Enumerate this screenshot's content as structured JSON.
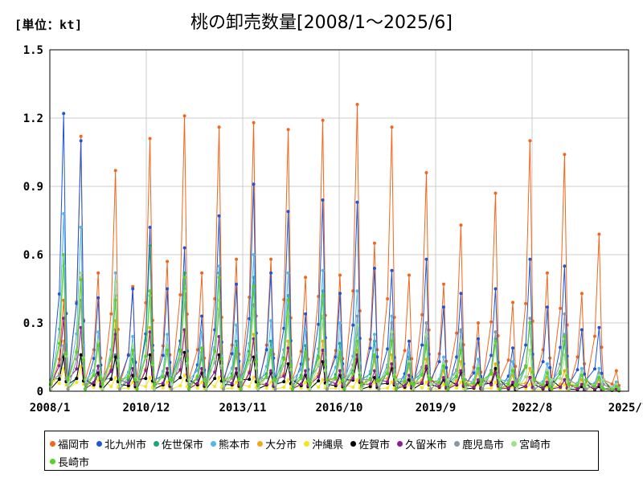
{
  "unit_label": "[単位：kt]",
  "title": "桃の卸売数量[2008/1～2025/6]",
  "chart_data": {
    "type": "line",
    "title": "桃の卸売数量[2008/1～2025/6]",
    "unit": "[単位：kt]",
    "ylim": [
      0,
      1.5
    ],
    "y_ticks": [
      "0",
      "0.3",
      "0.6",
      "0.9",
      "1.2",
      "1.5"
    ],
    "x_ticks": [
      "2008/1",
      "2010/12",
      "2013/11",
      "2016/10",
      "2019/9",
      "2022/8",
      "2025/7"
    ],
    "grid": true,
    "legend_position": "bottom",
    "series": [
      {
        "name": "福岡市",
        "color": "#f4661b",
        "peaks": [
          0.4,
          1.12,
          0.52,
          0.97,
          0.46,
          1.11,
          0.57,
          1.21,
          0.52,
          1.16,
          0.58,
          1.18,
          0.58,
          1.15,
          0.5,
          1.19,
          0.51,
          1.26,
          0.65,
          1.16,
          0.51,
          0.96,
          0.47,
          0.73,
          0.3,
          0.87,
          0.39,
          1.1,
          0.52,
          1.04,
          0.43,
          0.69,
          0.09
        ]
      },
      {
        "name": "北九州市",
        "color": "#1f55d6",
        "peaks": [
          1.22,
          1.1,
          0.41,
          0.27,
          0.45,
          0.72,
          0.45,
          0.63,
          0.33,
          0.77,
          0.47,
          0.91,
          0.52,
          0.79,
          0.34,
          0.84,
          0.43,
          0.83,
          0.54,
          0.53,
          0.22,
          0.58,
          0.37,
          0.43,
          0.23,
          0.45,
          0.19,
          0.58,
          0.37,
          0.55,
          0.27,
          0.28,
          0.04
        ]
      },
      {
        "name": "佐世保市",
        "color": "#19a67a",
        "peaks": [
          0.16,
          0.16,
          0.11,
          0.16,
          0.14,
          0.64,
          0.2,
          0.52,
          0.15,
          0.52,
          0.22,
          0.5,
          0.22,
          0.42,
          0.2,
          0.44,
          0.21,
          0.27,
          0.22,
          0.25,
          0.15,
          0.23,
          0.12,
          0.2,
          0.11,
          0.23,
          0.1,
          0.3,
          0.09,
          0.22,
          0.08,
          0.08,
          0.03
        ]
      },
      {
        "name": "熊本市",
        "color": "#55b8e8",
        "peaks": [
          0.78,
          0.72,
          0.26,
          0.52,
          0.24,
          0.44,
          0.25,
          0.46,
          0.26,
          0.55,
          0.29,
          0.6,
          0.31,
          0.52,
          0.27,
          0.53,
          0.3,
          0.44,
          0.25,
          0.33,
          0.17,
          0.3,
          0.15,
          0.26,
          0.14,
          0.26,
          0.13,
          0.3,
          0.12,
          0.25,
          0.1,
          0.1,
          0.04
        ]
      },
      {
        "name": "大分市",
        "color": "#f0a81a",
        "peaks": [
          0.22,
          0.5,
          0.22,
          0.31,
          0.18,
          0.28,
          0.18,
          0.26,
          0.17,
          0.24,
          0.16,
          0.25,
          0.17,
          0.22,
          0.16,
          0.22,
          0.15,
          0.18,
          0.14,
          0.16,
          0.11,
          0.14,
          0.09,
          0.13,
          0.08,
          0.12,
          0.07,
          0.1,
          0.06,
          0.09,
          0.05,
          0.05,
          0.02
        ]
      },
      {
        "name": "沖縄県",
        "color": "#f7e51b",
        "peaks": [
          0.1,
          0.11,
          0.05,
          0.06,
          0.04,
          0.06,
          0.04,
          0.07,
          0.04,
          0.06,
          0.04,
          0.06,
          0.04,
          0.05,
          0.04,
          0.05,
          0.04,
          0.05,
          0.04,
          0.04,
          0.03,
          0.04,
          0.03,
          0.04,
          0.03,
          0.04,
          0.02,
          0.03,
          0.02,
          0.03,
          0.02,
          0.03,
          0.01
        ]
      },
      {
        "name": "佐賀市",
        "color": "#000000",
        "peaks": [
          0.15,
          0.16,
          0.08,
          0.15,
          0.07,
          0.16,
          0.08,
          0.17,
          0.08,
          0.16,
          0.08,
          0.15,
          0.08,
          0.12,
          0.07,
          0.13,
          0.07,
          0.14,
          0.06,
          0.1,
          0.05,
          0.1,
          0.05,
          0.08,
          0.04,
          0.1,
          0.03,
          0.06,
          0.03,
          0.05,
          0.02,
          0.02,
          0.01
        ]
      },
      {
        "name": "久留米市",
        "color": "#8e1a96",
        "peaks": [
          0.32,
          0.28,
          0.11,
          0.25,
          0.1,
          0.26,
          0.1,
          0.27,
          0.1,
          0.24,
          0.1,
          0.23,
          0.09,
          0.19,
          0.09,
          0.18,
          0.09,
          0.16,
          0.09,
          0.12,
          0.07,
          0.11,
          0.06,
          0.09,
          0.05,
          0.08,
          0.04,
          0.06,
          0.04,
          0.05,
          0.03,
          0.03,
          0.01
        ]
      },
      {
        "name": "鹿児島市",
        "color": "#8c96a4",
        "peaks": [
          0.2,
          0.4,
          0.21,
          0.42,
          0.18,
          0.42,
          0.18,
          0.4,
          0.17,
          0.36,
          0.17,
          0.38,
          0.17,
          0.33,
          0.16,
          0.32,
          0.16,
          0.33,
          0.15,
          0.3,
          0.13,
          0.3,
          0.12,
          0.27,
          0.11,
          0.26,
          0.1,
          0.32,
          0.09,
          0.34,
          0.08,
          0.08,
          0.03
        ]
      },
      {
        "name": "宮崎市",
        "color": "#9fe18a",
        "peaks": [
          0.55,
          0.52,
          0.22,
          0.48,
          0.2,
          0.42,
          0.2,
          0.44,
          0.19,
          0.4,
          0.19,
          0.36,
          0.18,
          0.34,
          0.17,
          0.33,
          0.17,
          0.29,
          0.16,
          0.26,
          0.13,
          0.25,
          0.12,
          0.22,
          0.11,
          0.21,
          0.1,
          0.18,
          0.09,
          0.16,
          0.08,
          0.07,
          0.03
        ]
      },
      {
        "name": "長崎市",
        "color": "#57d324",
        "peaks": [
          0.6,
          0.49,
          0.2,
          0.4,
          0.18,
          0.44,
          0.18,
          0.5,
          0.19,
          0.5,
          0.19,
          0.46,
          0.18,
          0.4,
          0.17,
          0.42,
          0.17,
          0.22,
          0.16,
          0.22,
          0.12,
          0.2,
          0.11,
          0.18,
          0.1,
          0.22,
          0.09,
          0.3,
          0.08,
          0.24,
          0.07,
          0.06,
          0.02
        ]
      }
    ]
  }
}
